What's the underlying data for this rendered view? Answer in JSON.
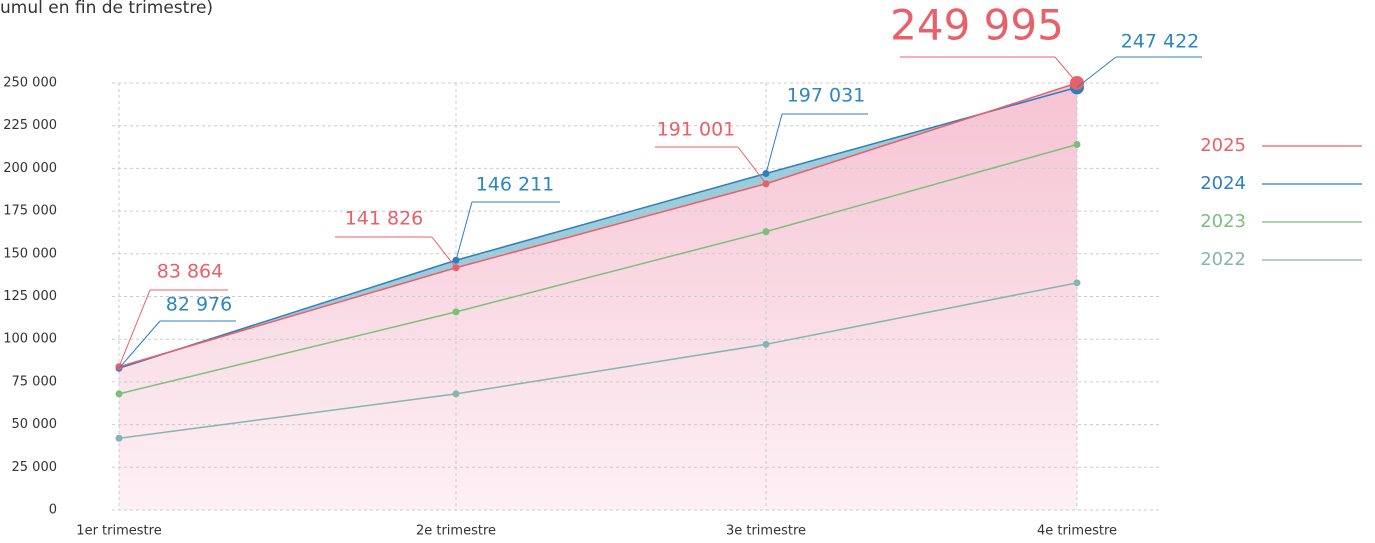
{
  "chart_data": {
    "type": "line",
    "title": "umul en fin de trimestre)",
    "categories": [
      "1er trimestre",
      "2e trimestre",
      "3e trimestre",
      "4e trimestre"
    ],
    "series": [
      {
        "name": "2025",
        "color": "#e8606a",
        "values": [
          83864,
          141826,
          191001,
          249995
        ],
        "value_labels": [
          "83 864",
          "141 826",
          "191 001",
          "249 995"
        ]
      },
      {
        "name": "2024",
        "color": "#2e7fc0",
        "values": [
          82976,
          146211,
          197031,
          247422
        ],
        "value_labels": [
          "82 976",
          "146 211",
          "197 031",
          "247 422"
        ]
      },
      {
        "name": "2023",
        "color": "#7cbf7c",
        "values": [
          68000,
          116000,
          163000,
          214000
        ]
      },
      {
        "name": "2022",
        "color": "#86b5ad",
        "values": [
          42000,
          68000,
          97000,
          133000
        ]
      }
    ],
    "ylim": [
      0,
      250000
    ],
    "yticks": [
      0,
      {
        "value": 25000,
        "label": "25 000"
      },
      {
        "value": 50000,
        "label": "50 000"
      },
      {
        "value": 75000,
        "label": "75 000"
      },
      {
        "value": 100000,
        "label": "100 000"
      },
      {
        "value": 125000,
        "label": "125 000"
      },
      {
        "value": 150000,
        "label": "150 000"
      },
      {
        "value": 175000,
        "label": "175 000"
      },
      {
        "value": 200000,
        "label": "200 000"
      },
      {
        "value": 225000,
        "label": "225 000"
      },
      {
        "value": 250000,
        "label": "250 000"
      }
    ],
    "grid": true,
    "legend": "right"
  }
}
